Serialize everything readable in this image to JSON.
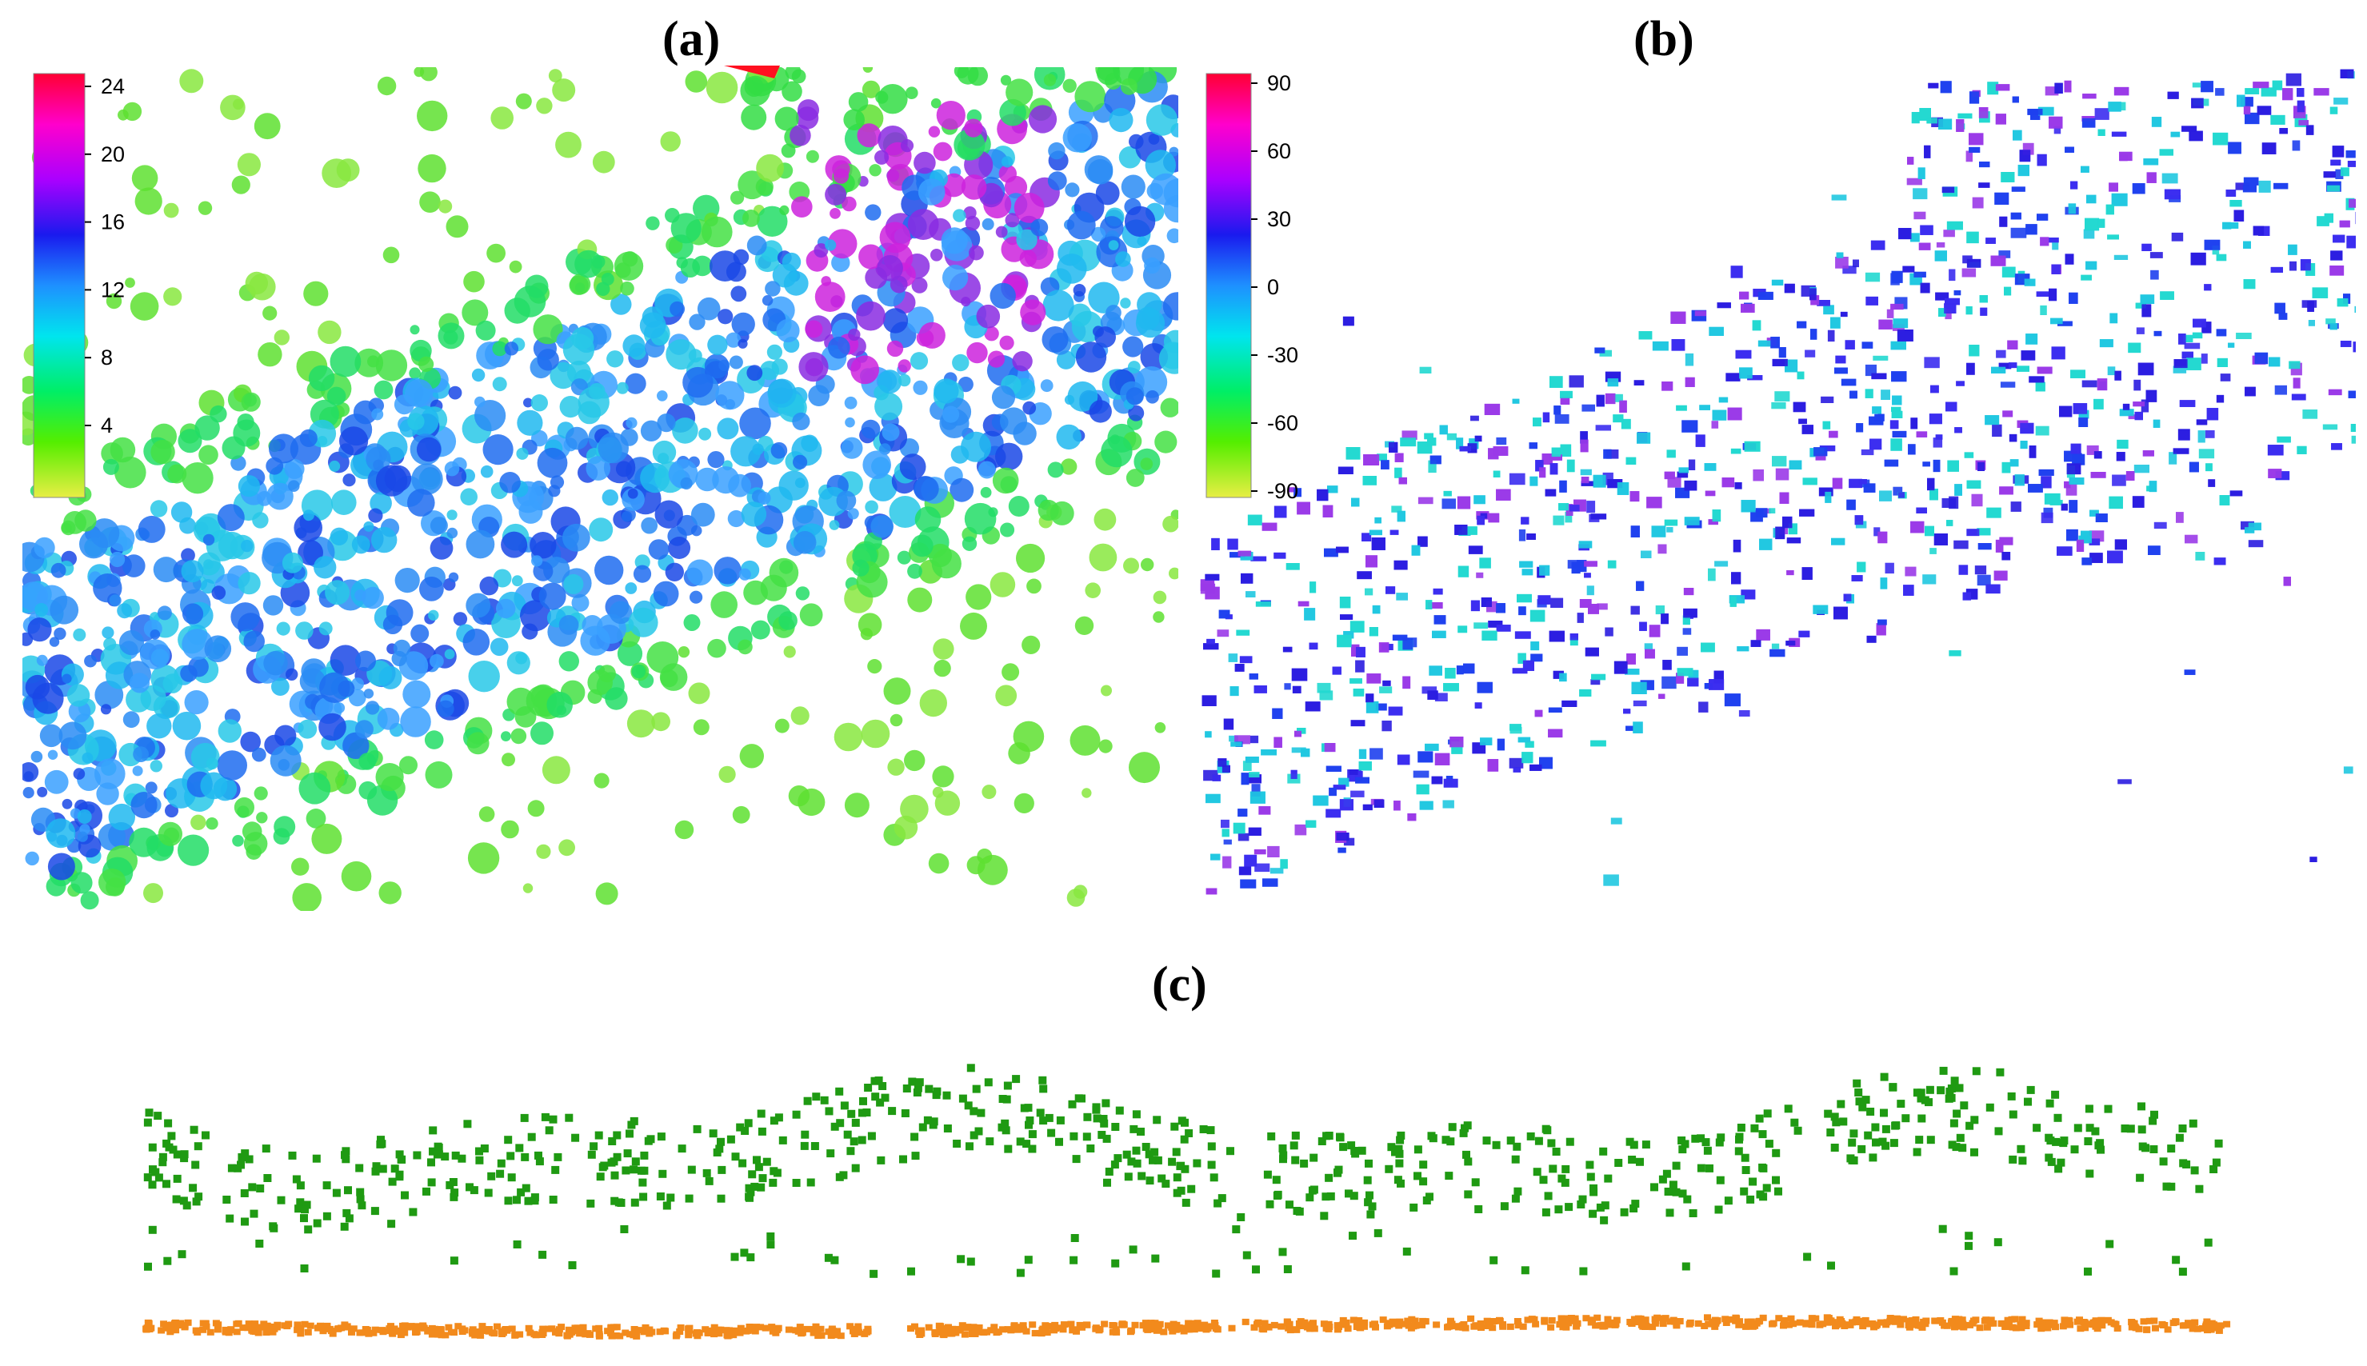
{
  "panels": {
    "a": {
      "label": "(a)",
      "colorbar": {
        "ticks": [
          "24",
          "20",
          "16",
          "12",
          "8",
          "4"
        ]
      }
    },
    "b": {
      "label": "(b)",
      "colorbar": {
        "ticks": [
          "90",
          "60",
          "30",
          "0",
          "-30",
          "-60",
          "-90"
        ]
      }
    },
    "c": {
      "label": "(c)"
    }
  },
  "colors": {
    "colorbar_stops": [
      "#ff0033",
      "#ff00cc",
      "#aa00ff",
      "#1a1aee",
      "#1e90ff",
      "#00e5ee",
      "#00ee66",
      "#55ee00",
      "#e8ee44"
    ],
    "canopy_green": "#1f9a12",
    "ground_orange": "#f28a1c",
    "slope_blue": "#2a1ce0",
    "slope_cyan": "#22d8d0"
  }
}
